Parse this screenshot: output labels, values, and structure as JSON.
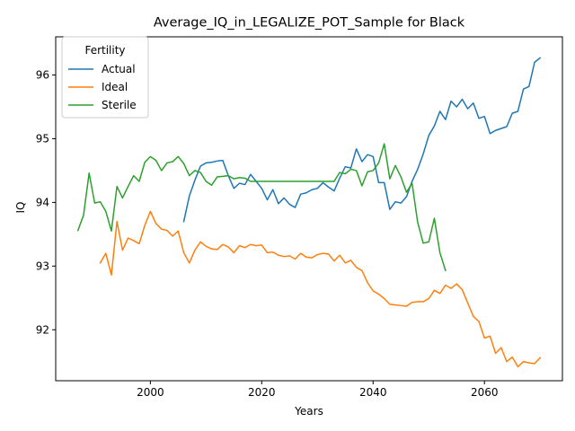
{
  "chart_data": {
    "type": "line",
    "title": "Average_IQ_in_LEGALIZE_POT_Sample for Black",
    "xlabel": "Years",
    "ylabel": "IQ",
    "xlim": [
      1983,
      2074
    ],
    "ylim": [
      91.2,
      96.6
    ],
    "xticks": [
      2000,
      2020,
      2040,
      2060
    ],
    "yticks": [
      92,
      93,
      94,
      95,
      96
    ],
    "grid": false,
    "legend": {
      "title": "Fertility",
      "placement": "top-left"
    },
    "series": [
      {
        "name": "Actual",
        "color": "#1f77b4",
        "x": [
          2006,
          2007,
          2008,
          2009,
          2010,
          2011,
          2012,
          2013,
          2014,
          2015,
          2016,
          2017,
          2018,
          2019,
          2020,
          2021,
          2022,
          2023,
          2024,
          2025,
          2026,
          2027,
          2028,
          2029,
          2030,
          2031,
          2032,
          2033,
          2034,
          2035,
          2036,
          2037,
          2038,
          2039,
          2040,
          2041,
          2042,
          2043,
          2044,
          2045,
          2046,
          2047,
          2048,
          2049,
          2050,
          2051,
          2052,
          2053,
          2054,
          2055,
          2056,
          2057,
          2058,
          2059,
          2060,
          2061,
          2062,
          2063,
          2064,
          2065,
          2066,
          2067,
          2068,
          2069,
          2070
        ],
        "values": [
          93.7,
          94.1,
          94.35,
          94.57,
          94.62,
          94.63,
          94.65,
          94.66,
          94.42,
          94.22,
          94.3,
          94.28,
          94.44,
          94.33,
          94.22,
          94.04,
          94.2,
          93.98,
          94.07,
          93.97,
          93.92,
          94.13,
          94.15,
          94.2,
          94.22,
          94.31,
          94.24,
          94.18,
          94.38,
          94.56,
          94.54,
          94.84,
          94.64,
          94.75,
          94.72,
          94.31,
          94.31,
          93.89,
          94.01,
          93.99,
          94.09,
          94.33,
          94.52,
          94.76,
          95.05,
          95.2,
          95.43,
          95.3,
          95.59,
          95.5,
          95.62,
          95.47,
          95.56,
          95.32,
          95.35,
          95.08,
          95.13,
          95.16,
          95.19,
          95.4,
          95.43,
          95.78,
          95.82,
          96.2,
          96.27
        ]
      },
      {
        "name": "Ideal",
        "color": "#ff7f0e",
        "x": [
          1991,
          1992,
          1993,
          1994,
          1995,
          1996,
          1997,
          1998,
          1999,
          2000,
          2001,
          2002,
          2003,
          2004,
          2005,
          2006,
          2007,
          2008,
          2009,
          2010,
          2011,
          2012,
          2013,
          2014,
          2015,
          2016,
          2017,
          2018,
          2019,
          2020,
          2021,
          2022,
          2023,
          2024,
          2025,
          2026,
          2027,
          2028,
          2029,
          2030,
          2031,
          2032,
          2033,
          2034,
          2035,
          2036,
          2037,
          2038,
          2039,
          2040,
          2041,
          2042,
          2043,
          2044,
          2045,
          2046,
          2047,
          2048,
          2049,
          2050,
          2051,
          2052,
          2053,
          2054,
          2055,
          2056,
          2057,
          2058,
          2059,
          2060,
          2061,
          2062,
          2063,
          2064,
          2065,
          2066,
          2067,
          2068,
          2069,
          2070
        ],
        "values": [
          93.05,
          93.2,
          92.86,
          93.7,
          93.25,
          93.44,
          93.4,
          93.35,
          93.64,
          93.86,
          93.67,
          93.58,
          93.56,
          93.47,
          93.55,
          93.21,
          93.05,
          93.25,
          93.38,
          93.31,
          93.27,
          93.26,
          93.34,
          93.3,
          93.21,
          93.32,
          93.29,
          93.34,
          93.32,
          93.33,
          93.21,
          93.22,
          93.17,
          93.15,
          93.16,
          93.11,
          93.2,
          93.14,
          93.13,
          93.18,
          93.2,
          93.19,
          93.08,
          93.17,
          93.05,
          93.09,
          92.98,
          92.93,
          92.74,
          92.61,
          92.56,
          92.49,
          92.4,
          92.39,
          92.38,
          92.37,
          92.43,
          92.44,
          92.44,
          92.49,
          92.62,
          92.57,
          92.7,
          92.65,
          92.72,
          92.63,
          92.42,
          92.21,
          92.13,
          91.87,
          91.9,
          91.63,
          91.72,
          91.5,
          91.57,
          91.42,
          91.5,
          91.48,
          91.47,
          91.56
        ]
      },
      {
        "name": "Sterile",
        "color": "#2ca02c",
        "x": [
          1987,
          1988,
          1989,
          1990,
          1991,
          1992,
          1993,
          1994,
          1995,
          1996,
          1997,
          1998,
          1999,
          2000,
          2001,
          2002,
          2003,
          2004,
          2005,
          2006,
          2007,
          2008,
          2009,
          2010,
          2011,
          2012,
          2013,
          2014,
          2015,
          2016,
          2017,
          2018,
          2019,
          2020,
          2021,
          2022,
          2023,
          2024,
          2025,
          2026,
          2027,
          2028,
          2029,
          2030,
          2031,
          2032,
          2033,
          2034,
          2035,
          2036,
          2037,
          2038,
          2039,
          2040,
          2041,
          2042,
          2043,
          2044,
          2045,
          2046,
          2047,
          2048,
          2049,
          2050,
          2051,
          2052,
          2053
        ],
        "values": [
          93.56,
          93.8,
          94.46,
          93.99,
          94.01,
          93.86,
          93.55,
          94.25,
          94.07,
          94.25,
          94.42,
          94.33,
          94.63,
          94.72,
          94.66,
          94.5,
          94.62,
          94.64,
          94.72,
          94.61,
          94.42,
          94.5,
          94.47,
          94.33,
          94.27,
          94.4,
          94.41,
          94.42,
          94.37,
          94.39,
          94.38,
          94.33,
          94.33,
          94.33,
          94.33,
          94.33,
          94.33,
          94.33,
          94.33,
          94.33,
          94.33,
          94.33,
          94.33,
          94.33,
          94.33,
          94.33,
          94.33,
          94.47,
          94.45,
          94.52,
          94.5,
          94.26,
          94.48,
          94.5,
          94.62,
          94.92,
          94.37,
          94.58,
          94.4,
          94.16,
          94.3,
          93.69,
          93.36,
          93.38,
          93.75,
          93.21,
          92.93
        ]
      }
    ]
  }
}
